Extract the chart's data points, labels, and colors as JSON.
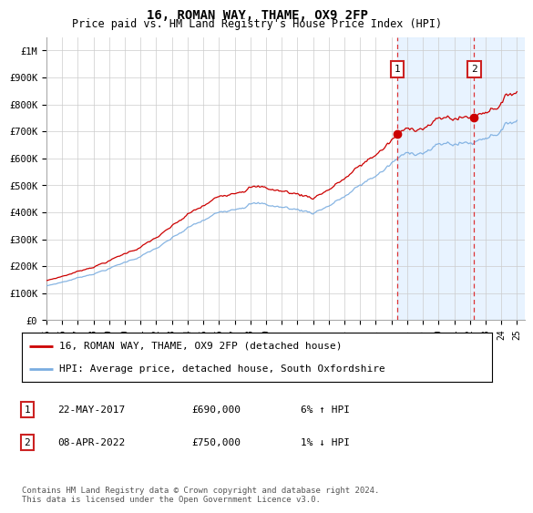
{
  "title": "16, ROMAN WAY, THAME, OX9 2FP",
  "subtitle": "Price paid vs. HM Land Registry's House Price Index (HPI)",
  "ylabel_ticks": [
    "£0",
    "£100K",
    "£200K",
    "£300K",
    "£400K",
    "£500K",
    "£600K",
    "£700K",
    "£800K",
    "£900K",
    "£1M"
  ],
  "ytick_values": [
    0,
    100000,
    200000,
    300000,
    400000,
    500000,
    600000,
    700000,
    800000,
    900000,
    1000000
  ],
  "ylim": [
    0,
    1050000
  ],
  "xlim_start": 1995.0,
  "xlim_end": 2025.5,
  "xtick_years": [
    1995,
    1996,
    1997,
    1998,
    1999,
    2000,
    2001,
    2002,
    2003,
    2004,
    2005,
    2006,
    2007,
    2008,
    2009,
    2010,
    2011,
    2012,
    2013,
    2014,
    2015,
    2016,
    2017,
    2018,
    2019,
    2020,
    2021,
    2022,
    2023,
    2024,
    2025
  ],
  "hpi_color": "#7aade0",
  "price_color": "#cc0000",
  "sale1_x": 2017.38,
  "sale1_y": 690000,
  "sale1_label": "1",
  "sale2_x": 2022.27,
  "sale2_y": 750000,
  "sale2_label": "2",
  "vline_color": "#dd3333",
  "vline_style": "--",
  "shade_color": "#ddeeff",
  "legend_line1": "16, ROMAN WAY, THAME, OX9 2FP (detached house)",
  "legend_line2": "HPI: Average price, detached house, South Oxfordshire",
  "table_row1_num": "1",
  "table_row1_date": "22-MAY-2017",
  "table_row1_price": "£690,000",
  "table_row1_hpi": "6% ↑ HPI",
  "table_row2_num": "2",
  "table_row2_date": "08-APR-2022",
  "table_row2_price": "£750,000",
  "table_row2_hpi": "1% ↓ HPI",
  "footer": "Contains HM Land Registry data © Crown copyright and database right 2024.\nThis data is licensed under the Open Government Licence v3.0.",
  "bg_color": "#ffffff",
  "grid_color": "#cccccc"
}
